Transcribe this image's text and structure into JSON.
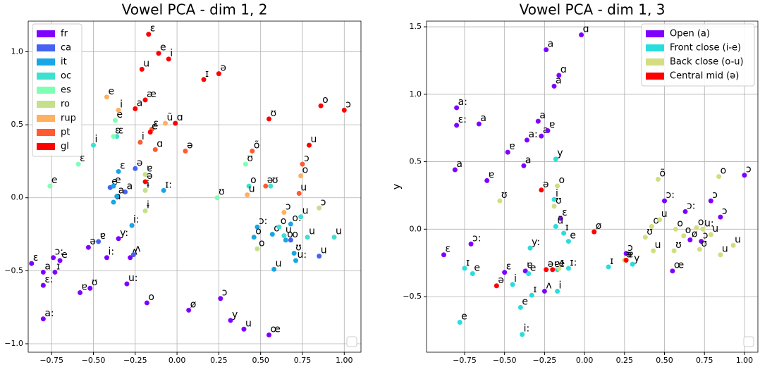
{
  "chart_data": [
    {
      "type": "scatter",
      "title": "Vowel PCA - dim 1, 2",
      "legend": "upper left",
      "grid": true,
      "xlim": [
        -0.89,
        1.1
      ],
      "ylim": [
        -1.058,
        1.21
      ],
      "xticks": [
        {
          "value": -0.75,
          "label": "−0.75"
        },
        {
          "value": -0.5,
          "label": "−0.50"
        },
        {
          "value": -0.25,
          "label": "−0.25"
        },
        {
          "value": 0,
          "label": "0.00"
        },
        0.25,
        {
          "value": 0.5,
          "label": "0.50"
        },
        0.75,
        {
          "value": 1,
          "label": "1.00"
        }
      ],
      "yticks": [
        {
          "value": -1,
          "label": "−1.0"
        },
        {
          "value": -0.5,
          "label": "−0.5"
        },
        {
          "value": 0,
          "label": "0.0"
        },
        0.5,
        {
          "value": 1,
          "label": "1.0"
        }
      ],
      "series": [
        {
          "name": "fr",
          "color": "#7f00ff",
          "x": [
            -0.87,
            -0.8,
            -0.8,
            -0.8,
            -0.74,
            -0.73,
            -0.7,
            -0.53,
            -0.52,
            -0.42,
            -0.3,
            -0.28,
            -0.35,
            -0.18,
            0.07,
            0.26,
            0.32,
            0.4,
            0.55,
            -0.58
          ],
          "values": [
            -0.45,
            -0.51,
            -0.6,
            -0.83,
            -0.41,
            -0.51,
            -0.43,
            -0.34,
            -0.62,
            -0.41,
            -0.59,
            -0.41,
            -0.28,
            -0.72,
            -0.77,
            -0.69,
            -0.84,
            -0.9,
            -0.94,
            -0.65
          ],
          "labels": [
            "ɛ",
            "a",
            "ɛ:",
            "a:",
            "ɔ:",
            "ɪ",
            "e",
            "ə",
            "ʊ",
            "i:",
            "u:",
            "ʌ",
            "y:",
            "o",
            "ø",
            "ɔ",
            "y",
            "u",
            "œ",
            "ɐ"
          ]
        },
        {
          "name": "ca",
          "color": "#4562f2",
          "x": [
            -0.47,
            -0.26,
            -0.31,
            -0.25,
            0.85,
            0.68,
            -0.4
          ],
          "values": [
            -0.3,
            -0.39,
            0.04,
            0.2,
            -0.4,
            -0.29,
            0.07
          ],
          "labels": [
            "ɐ",
            "ʌ",
            "a",
            "ə",
            "u",
            "o",
            "e"
          ]
        },
        {
          "name": "it",
          "color": "#17a6e6",
          "x": [
            -0.35,
            -0.38,
            -0.38,
            -0.36,
            -0.27,
            -0.08,
            0.48,
            0.57,
            0.68,
            0.7,
            0.58,
            0.71,
            0.46,
            0.65
          ],
          "values": [
            0.18,
            0.08,
            -0.03,
            0.01,
            -0.19,
            0.05,
            -0.2,
            -0.25,
            -0.18,
            -0.38,
            -0.49,
            -0.43,
            -0.27,
            -0.29
          ],
          "labels": [
            "ɛ",
            "e",
            "a",
            "a",
            "i:",
            "ɪ:",
            "ɔ:",
            "o",
            "o:",
            "ʊ",
            "u",
            "u:",
            "o",
            "o"
          ]
        },
        {
          "name": "oc",
          "color": "#3ee0d0",
          "x": [
            -0.5,
            -0.36,
            0.43,
            0.61,
            0.64,
            0.74,
            0.78,
            0.56,
            0.94
          ],
          "values": [
            0.36,
            0.42,
            0.08,
            -0.2,
            -0.26,
            -0.13,
            -0.27,
            0.08,
            -0.27
          ],
          "labels": [
            "i",
            "ɛ",
            "o",
            "o",
            "u",
            "u",
            "u",
            "ʊ",
            "u"
          ]
        },
        {
          "name": "es",
          "color": "#80ffb4",
          "x": [
            -0.37,
            -0.38,
            -0.59,
            -0.76,
            0.41,
            0.24
          ],
          "values": [
            0.53,
            0.42,
            0.23,
            0.08,
            0.23,
            0.0
          ],
          "labels": [
            "e",
            "ɛ",
            "ɛ",
            "e",
            "ʊ",
            "ʊ"
          ]
        },
        {
          "name": "ro",
          "color": "#c4e08a",
          "x": [
            -0.19,
            0.48,
            0.85,
            -0.19,
            -0.19
          ],
          "values": [
            -0.09,
            -0.35,
            -0.07,
            0.16,
            0.05
          ],
          "labels": [
            "ɨ",
            "o",
            "ɔ",
            "ɐ",
            "ɨ"
          ]
        },
        {
          "name": "rup",
          "color": "#ffb060",
          "x": [
            -0.42,
            -0.35,
            -0.07,
            0.42,
            0.74,
            0.64
          ],
          "values": [
            0.69,
            0.6,
            0.51,
            0.02,
            0.15,
            -0.1
          ],
          "labels": [
            "e",
            "i",
            "ũ",
            "u",
            "o",
            "ɔ"
          ]
        },
        {
          "name": "pt",
          "color": "#ff5a30",
          "x": [
            -0.15,
            -0.22,
            -0.13,
            0.05,
            0.45,
            0.75,
            0.53,
            0.73
          ],
          "values": [
            0.47,
            0.38,
            0.33,
            0.32,
            0.32,
            0.23,
            0.08,
            0.03
          ],
          "labels": [
            "ɛ",
            "i",
            "ɑ",
            "ə",
            "õ",
            "ɔ",
            "ə",
            "u"
          ]
        },
        {
          "name": "gl",
          "color": "#ff0000",
          "x": [
            -0.17,
            -0.11,
            -0.05,
            -0.21,
            0.16,
            0.25,
            -0.19,
            -0.25,
            -0.16,
            -0.01,
            0.55,
            0.79,
            0.86,
            1.0,
            -0.19
          ],
          "values": [
            1.12,
            0.99,
            0.95,
            0.88,
            0.81,
            0.85,
            0.67,
            0.61,
            0.45,
            0.51,
            0.54,
            0.36,
            0.63,
            0.6,
            0.11
          ],
          "labels": [
            "ɛ",
            "e",
            "i",
            "u",
            "ɪ",
            "ə",
            "æ",
            "a",
            "e",
            "ɑ",
            "ʊ",
            "u",
            "o",
            "ɔ",
            "ə"
          ]
        }
      ]
    },
    {
      "type": "scatter",
      "title": "Vowel PCA - dim 1, 3",
      "ylabel": "y",
      "legend": "upper right",
      "grid": true,
      "xlim": [
        -0.988,
        1.084
      ],
      "ylim": [
        -0.912,
        1.542
      ],
      "xticks": [
        {
          "value": -0.75,
          "label": "−0.75"
        },
        {
          "value": -0.5,
          "label": "−0.50"
        },
        {
          "value": -0.25,
          "label": "−0.25"
        },
        {
          "value": 0,
          "label": "0.00"
        },
        0.25,
        {
          "value": 0.5,
          "label": "0.50"
        },
        0.75,
        {
          "value": 1,
          "label": "1.00"
        }
      ],
      "yticks": [
        {
          "value": -0.5,
          "label": "−0.5"
        },
        {
          "value": 0,
          "label": "0.0"
        },
        0.5,
        {
          "value": 1,
          "label": "1.0"
        },
        1.5
      ],
      "series": [
        {
          "name": "Open (a)",
          "color": "#7f00ff",
          "x": [
            -0.02,
            -0.24,
            -0.16,
            -0.19,
            -0.8,
            -0.8,
            -0.66,
            -0.29,
            -0.27,
            -0.23,
            -0.36,
            -0.48,
            -0.38,
            -0.81,
            -0.61,
            -0.71,
            -0.88,
            -0.25,
            0.5,
            0.63,
            0.79,
            1.0,
            0.73,
            0.55,
            -0.5,
            -0.37,
            -0.15,
            0.85,
            0.26,
            0.66
          ],
          "values": [
            1.44,
            1.33,
            1.14,
            1.06,
            0.9,
            0.77,
            0.78,
            0.8,
            0.69,
            0.73,
            0.66,
            0.57,
            0.47,
            0.44,
            0.36,
            -0.11,
            -0.19,
            -0.46,
            0.21,
            0.13,
            0.21,
            0.4,
            -0.09,
            -0.31,
            -0.32,
            -0.31,
            0.08,
            0.09,
            -0.18,
            -0.08
          ],
          "labels": [
            "ɑ",
            "a",
            "ɑ",
            "a",
            "a:",
            "ɛ:",
            "a",
            "a",
            "a",
            "ɐ",
            "a:",
            "ɐ",
            "a",
            "a",
            "ɐ",
            "ɔ:",
            "ɛ",
            "ʌ",
            "ɔ:",
            "ɔ:",
            "ɔ",
            "ɔ",
            "ɔ",
            "œ",
            "ɛ",
            "ɐ",
            "ɛ",
            "ɔ",
            "ɔ",
            "ø"
          ]
        },
        {
          "name": "Front close (i-e)",
          "color": "#2adddd",
          "x": [
            -0.18,
            -0.19,
            -0.18,
            -0.13,
            -0.1,
            -0.1,
            -0.17,
            -0.34,
            -0.75,
            -0.7,
            -0.45,
            -0.4,
            -0.39,
            -0.78,
            0.15,
            0.3,
            -0.33,
            -0.17,
            -0.35
          ],
          "values": [
            0.52,
            0.22,
            0.02,
            -0.03,
            -0.09,
            -0.29,
            -0.46,
            -0.14,
            -0.29,
            -0.33,
            -0.41,
            -0.58,
            -0.78,
            -0.69,
            -0.28,
            -0.26,
            -0.49,
            -0.3,
            -0.33
          ],
          "labels": [
            "y",
            "i",
            "ũ",
            "ɪ",
            "e",
            "ɪ:",
            "i",
            "y:",
            "ɪ",
            "e",
            "i",
            "e",
            "i:",
            "e",
            "ɪ",
            "y",
            "ɪ",
            "e",
            "e"
          ]
        },
        {
          "name": "Back close (o-u)",
          "color": "#d4dd80",
          "x": [
            0.46,
            0.84,
            -0.19,
            -0.17,
            -0.53,
            0.42,
            0.47,
            0.57,
            0.7,
            0.74,
            0.79,
            0.93,
            0.85,
            0.56,
            0.43,
            0.38,
            0.72,
            -0.16,
            0.62,
            0.25
          ],
          "values": [
            0.37,
            0.39,
            0.17,
            0.32,
            0.21,
            0.02,
            0.07,
            0.0,
            0.01,
            0.0,
            -0.04,
            -0.12,
            -0.19,
            -0.16,
            -0.16,
            -0.06,
            -0.15,
            -0.29,
            -0.05,
            -0.23
          ],
          "labels": [
            "õ",
            "o",
            "ʊ",
            "o",
            "ʊ",
            "o",
            "u",
            "o",
            "o:",
            "u:",
            "u",
            "u",
            "u",
            "ʊ",
            "u",
            "ʊ",
            "ʊ",
            "ɪ",
            "o",
            "ə"
          ]
        },
        {
          "name": "Central mid (ə)",
          "color": "#ff0000",
          "x": [
            -0.27,
            0.06,
            -0.24,
            -0.55,
            -0.2,
            0.26
          ],
          "values": [
            0.29,
            -0.02,
            -0.3,
            -0.42,
            -0.3,
            -0.23
          ],
          "labels": [
            "ə",
            "ø",
            "ə",
            "ə",
            "ɐ",
            "ɐ"
          ]
        }
      ]
    }
  ]
}
